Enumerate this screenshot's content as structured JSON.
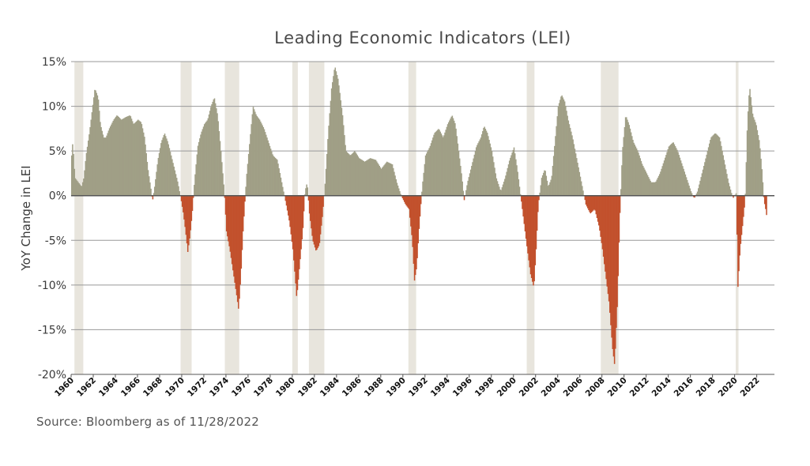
{
  "chart_data": {
    "type": "bar",
    "title": "Leading Economic Indicators (LEI)",
    "ylabel": "YoY Change in LEI",
    "xlabel": "",
    "source": "Source: Bloomberg as of 11/28/2022",
    "ylim": [
      -20,
      15
    ],
    "xlim": [
      1960,
      2023.6
    ],
    "yticks": [
      15,
      10,
      5,
      0,
      -5,
      -10,
      -15,
      -20
    ],
    "ytick_labels": [
      "15%",
      "10%",
      "5%",
      "0%",
      "-5%",
      "-10%",
      "-15%",
      "-20%"
    ],
    "xticks": [
      1960,
      1962,
      1964,
      1966,
      1968,
      1970,
      1972,
      1974,
      1976,
      1978,
      1980,
      1982,
      1984,
      1986,
      1988,
      1990,
      1992,
      1994,
      1996,
      1998,
      2000,
      2002,
      2004,
      2006,
      2008,
      2010,
      2012,
      2014,
      2016,
      2018,
      2020,
      2022
    ],
    "xtick_labels": [
      "1960",
      "1962",
      "1964",
      "1966",
      "1968",
      "1970",
      "1972",
      "1974",
      "1976",
      "1978",
      "1980",
      "1982",
      "1984",
      "1986",
      "1988",
      "1990",
      "1992",
      "1994",
      "1996",
      "1998",
      "2000",
      "2002",
      "2004",
      "2006",
      "2008",
      "2010",
      "2012",
      "2014",
      "2016",
      "2018",
      "2020",
      "2022"
    ],
    "grid": true,
    "colors": {
      "positive": "#a09f86",
      "negative": "#c2512d",
      "recession": "#e8e5dd",
      "grid": "#999999",
      "zero_line": "#555555"
    },
    "recessions": [
      [
        1960.3,
        1961.1
      ],
      [
        1969.9,
        1970.9
      ],
      [
        1973.9,
        1975.2
      ],
      [
        1980.0,
        1980.5
      ],
      [
        1981.5,
        1982.9
      ],
      [
        1990.5,
        1991.2
      ],
      [
        2001.2,
        2001.9
      ],
      [
        2007.9,
        2009.5
      ],
      [
        2020.1,
        2020.35
      ]
    ],
    "series": [
      {
        "points": [
          [
            1960.0,
            4.5
          ],
          [
            1960.1,
            6.0
          ],
          [
            1960.3,
            2.0
          ],
          [
            1960.6,
            1.5
          ],
          [
            1960.9,
            1.0
          ],
          [
            1961.1,
            2.0
          ],
          [
            1961.3,
            4.5
          ],
          [
            1961.6,
            7.0
          ],
          [
            1961.9,
            10.0
          ],
          [
            1962.1,
            12.0
          ],
          [
            1962.4,
            11.0
          ],
          [
            1962.6,
            8.0
          ],
          [
            1962.9,
            6.5
          ],
          [
            1963.1,
            6.5
          ],
          [
            1963.4,
            7.5
          ],
          [
            1963.8,
            8.5
          ],
          [
            1964.1,
            9.0
          ],
          [
            1964.5,
            8.5
          ],
          [
            1964.9,
            8.8
          ],
          [
            1965.3,
            9.0
          ],
          [
            1965.6,
            8.0
          ],
          [
            1966.0,
            8.5
          ],
          [
            1966.3,
            8.2
          ],
          [
            1966.6,
            6.5
          ],
          [
            1966.9,
            3.0
          ],
          [
            1967.2,
            0.5
          ],
          [
            1967.3,
            -0.7
          ],
          [
            1967.5,
            1.0
          ],
          [
            1967.8,
            4.0
          ],
          [
            1968.1,
            6.0
          ],
          [
            1968.4,
            7.0
          ],
          [
            1968.7,
            6.0
          ],
          [
            1969.0,
            4.5
          ],
          [
            1969.3,
            3.0
          ],
          [
            1969.6,
            1.5
          ],
          [
            1969.9,
            -0.5
          ],
          [
            1970.1,
            -2.0
          ],
          [
            1970.3,
            -4.0
          ],
          [
            1970.5,
            -6.3
          ],
          [
            1970.7,
            -4.5
          ],
          [
            1970.9,
            -2.0
          ],
          [
            1971.1,
            1.5
          ],
          [
            1971.4,
            5.5
          ],
          [
            1971.7,
            7.0
          ],
          [
            1972.0,
            8.0
          ],
          [
            1972.3,
            8.5
          ],
          [
            1972.6,
            10.0
          ],
          [
            1972.9,
            11.0
          ],
          [
            1973.2,
            9.0
          ],
          [
            1973.5,
            5.0
          ],
          [
            1973.8,
            0.5
          ],
          [
            1974.0,
            -4.0
          ],
          [
            1974.3,
            -6.0
          ],
          [
            1974.6,
            -8.5
          ],
          [
            1974.9,
            -11.0
          ],
          [
            1975.1,
            -12.8
          ],
          [
            1975.3,
            -9.0
          ],
          [
            1975.5,
            -4.0
          ],
          [
            1975.8,
            2.0
          ],
          [
            1976.1,
            6.0
          ],
          [
            1976.4,
            10.0
          ],
          [
            1976.7,
            9.0
          ],
          [
            1977.0,
            8.5
          ],
          [
            1977.4,
            7.5
          ],
          [
            1977.8,
            6.0
          ],
          [
            1978.2,
            4.5
          ],
          [
            1978.6,
            4.0
          ],
          [
            1979.0,
            1.5
          ],
          [
            1979.4,
            -1.0
          ],
          [
            1979.7,
            -3.0
          ],
          [
            1980.0,
            -6.0
          ],
          [
            1980.2,
            -9.0
          ],
          [
            1980.35,
            -11.5
          ],
          [
            1980.6,
            -8.0
          ],
          [
            1980.9,
            -4.0
          ],
          [
            1981.1,
            0.5
          ],
          [
            1981.3,
            1.5
          ],
          [
            1981.5,
            -2.0
          ],
          [
            1981.8,
            -5.0
          ],
          [
            1982.1,
            -6.2
          ],
          [
            1982.4,
            -5.5
          ],
          [
            1982.7,
            -2.0
          ],
          [
            1982.9,
            1.0
          ],
          [
            1983.2,
            7.0
          ],
          [
            1983.5,
            12.0
          ],
          [
            1983.8,
            14.5
          ],
          [
            1984.1,
            13.0
          ],
          [
            1984.5,
            9.0
          ],
          [
            1984.8,
            5.0
          ],
          [
            1985.2,
            4.5
          ],
          [
            1985.6,
            5.0
          ],
          [
            1986.0,
            4.2
          ],
          [
            1986.5,
            3.8
          ],
          [
            1987.0,
            4.2
          ],
          [
            1987.5,
            4.0
          ],
          [
            1988.0,
            3.0
          ],
          [
            1988.5,
            3.8
          ],
          [
            1989.0,
            3.5
          ],
          [
            1989.4,
            1.5
          ],
          [
            1989.8,
            0.0
          ],
          [
            1990.2,
            -1.0
          ],
          [
            1990.5,
            -1.5
          ],
          [
            1990.8,
            -5.0
          ],
          [
            1991.0,
            -9.5
          ],
          [
            1991.2,
            -8.0
          ],
          [
            1991.4,
            -4.0
          ],
          [
            1991.7,
            1.0
          ],
          [
            1992.0,
            4.5
          ],
          [
            1992.4,
            5.5
          ],
          [
            1992.8,
            7.0
          ],
          [
            1993.2,
            7.5
          ],
          [
            1993.6,
            6.5
          ],
          [
            1994.0,
            8.0
          ],
          [
            1994.4,
            9.0
          ],
          [
            1994.7,
            8.0
          ],
          [
            1995.0,
            5.0
          ],
          [
            1995.3,
            2.0
          ],
          [
            1995.5,
            -0.5
          ],
          [
            1995.8,
            1.5
          ],
          [
            1996.2,
            3.5
          ],
          [
            1996.6,
            5.5
          ],
          [
            1997.0,
            6.5
          ],
          [
            1997.3,
            7.8
          ],
          [
            1997.6,
            7.0
          ],
          [
            1998.0,
            5.0
          ],
          [
            1998.4,
            2.0
          ],
          [
            1998.8,
            0.5
          ],
          [
            1999.2,
            2.0
          ],
          [
            1999.6,
            4.0
          ],
          [
            2000.0,
            5.4
          ],
          [
            2000.3,
            3.0
          ],
          [
            2000.6,
            0.0
          ],
          [
            2000.9,
            -3.0
          ],
          [
            2001.2,
            -6.0
          ],
          [
            2001.5,
            -8.8
          ],
          [
            2001.8,
            -10.3
          ],
          [
            2002.0,
            -6.0
          ],
          [
            2002.2,
            -1.0
          ],
          [
            2002.5,
            2.0
          ],
          [
            2002.8,
            3.0
          ],
          [
            2003.1,
            1.0
          ],
          [
            2003.4,
            2.0
          ],
          [
            2003.7,
            6.0
          ],
          [
            2004.0,
            10.0
          ],
          [
            2004.3,
            11.3
          ],
          [
            2004.6,
            10.5
          ],
          [
            2004.9,
            8.5
          ],
          [
            2005.3,
            6.5
          ],
          [
            2005.7,
            4.0
          ],
          [
            2006.1,
            1.5
          ],
          [
            2006.5,
            -1.0
          ],
          [
            2006.9,
            -2.0
          ],
          [
            2007.3,
            -1.5
          ],
          [
            2007.7,
            -3.5
          ],
          [
            2008.0,
            -6.0
          ],
          [
            2008.3,
            -9.0
          ],
          [
            2008.6,
            -12.0
          ],
          [
            2008.9,
            -17.0
          ],
          [
            2009.1,
            -19.0
          ],
          [
            2009.35,
            -12.0
          ],
          [
            2009.55,
            -3.0
          ],
          [
            2009.8,
            5.0
          ],
          [
            2010.1,
            9.0
          ],
          [
            2010.4,
            8.0
          ],
          [
            2010.8,
            6.0
          ],
          [
            2011.2,
            5.0
          ],
          [
            2011.6,
            3.5
          ],
          [
            2012.0,
            2.5
          ],
          [
            2012.4,
            1.5
          ],
          [
            2012.8,
            1.5
          ],
          [
            2013.2,
            2.5
          ],
          [
            2013.6,
            4.0
          ],
          [
            2014.0,
            5.5
          ],
          [
            2014.4,
            6.0
          ],
          [
            2014.8,
            5.0
          ],
          [
            2015.2,
            3.5
          ],
          [
            2015.6,
            2.0
          ],
          [
            2016.0,
            0.5
          ],
          [
            2016.3,
            -0.3
          ],
          [
            2016.6,
            0.5
          ],
          [
            2017.0,
            2.5
          ],
          [
            2017.4,
            4.5
          ],
          [
            2017.8,
            6.5
          ],
          [
            2018.2,
            7.0
          ],
          [
            2018.6,
            6.5
          ],
          [
            2019.0,
            4.0
          ],
          [
            2019.4,
            1.5
          ],
          [
            2019.8,
            -0.3
          ],
          [
            2020.1,
            0.3
          ],
          [
            2020.25,
            -10.2
          ],
          [
            2020.45,
            -6.0
          ],
          [
            2020.7,
            -3.0
          ],
          [
            2020.9,
            -0.5
          ],
          [
            2021.1,
            8.0
          ],
          [
            2021.3,
            12.3
          ],
          [
            2021.6,
            9.0
          ],
          [
            2021.9,
            8.0
          ],
          [
            2022.2,
            6.0
          ],
          [
            2022.45,
            2.5
          ],
          [
            2022.6,
            -0.5
          ],
          [
            2022.75,
            -1.5
          ],
          [
            2022.9,
            -2.7
          ]
        ]
      }
    ]
  }
}
